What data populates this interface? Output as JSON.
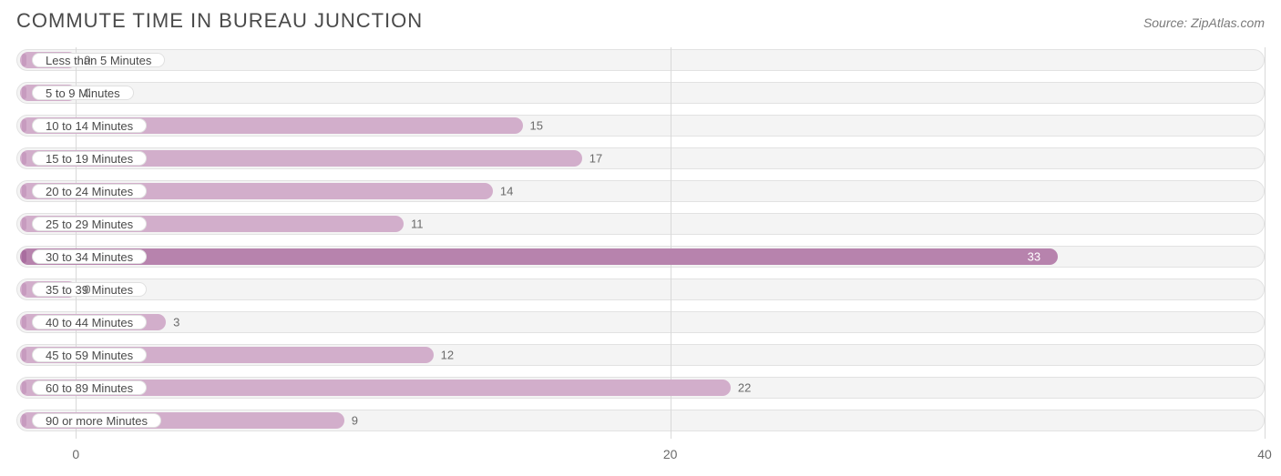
{
  "chart": {
    "type": "bar-horizontal",
    "title": "COMMUTE TIME IN BUREAU JUNCTION",
    "source": "Source: ZipAtlas.com",
    "background_color": "#ffffff",
    "track_color": "#f4f4f4",
    "track_border": "#e2e2e2",
    "grid_color": "#d9d9d9",
    "title_color": "#4a4a4a",
    "title_fontsize": 22,
    "source_color": "#7a7a7a",
    "label_fontsize": 13,
    "axis_fontsize": 14,
    "bar_color_light": "#d2aecb",
    "bar_color_dark": "#b783ad",
    "cap_color_light": "#c79bbf",
    "cap_color_dark": "#a96d9f",
    "value_color_outside": "#6a6a6a",
    "value_color_inside": "#ffffff",
    "label_pill_bg": "#ffffff",
    "label_pill_border": "#e0e0e0",
    "xmin": -2,
    "xmax": 40,
    "xticks": [
      0,
      20,
      40
    ],
    "label_pill_width_approx": 160,
    "categories": [
      {
        "label": "Less than 5 Minutes",
        "value": 0
      },
      {
        "label": "5 to 9 Minutes",
        "value": 0
      },
      {
        "label": "10 to 14 Minutes",
        "value": 15
      },
      {
        "label": "15 to 19 Minutes",
        "value": 17
      },
      {
        "label": "20 to 24 Minutes",
        "value": 14
      },
      {
        "label": "25 to 29 Minutes",
        "value": 11
      },
      {
        "label": "30 to 34 Minutes",
        "value": 33
      },
      {
        "label": "35 to 39 Minutes",
        "value": 0
      },
      {
        "label": "40 to 44 Minutes",
        "value": 3
      },
      {
        "label": "45 to 59 Minutes",
        "value": 12
      },
      {
        "label": "60 to 89 Minutes",
        "value": 22
      },
      {
        "label": "90 or more Minutes",
        "value": 9
      }
    ]
  }
}
